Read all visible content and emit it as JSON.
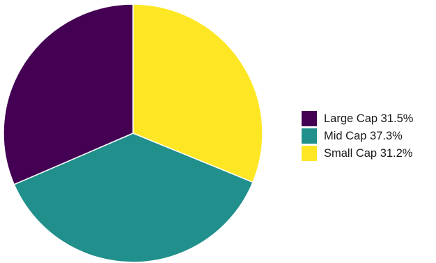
{
  "chart_data": {
    "type": "pie",
    "title": "",
    "start_angle": "12 o'clock",
    "direction": "clockwise",
    "slice_order": [
      "Small Cap",
      "Mid Cap",
      "Large Cap"
    ],
    "legend_position": "right",
    "slices": [
      {
        "label": "Large Cap",
        "value": 31.5,
        "color": "#440154",
        "legend_text": "Large Cap 31.5%"
      },
      {
        "label": "Mid Cap",
        "value": 37.3,
        "color": "#21908C",
        "legend_text": "Mid Cap 37.3%"
      },
      {
        "label": "Small Cap",
        "value": 31.2,
        "color": "#FDE725",
        "legend_text": "Small Cap 31.2%"
      }
    ]
  }
}
